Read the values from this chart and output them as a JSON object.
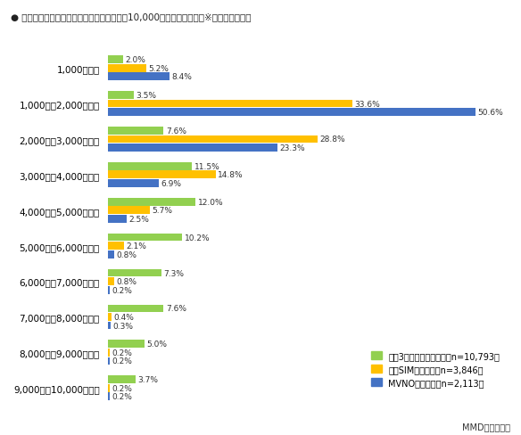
{
  "title": "● 通信会社に支払っている通信の月額料金（10,000円未満まで抜粋）※通信サービス別",
  "categories": [
    "1,000円未満",
    "1,000円～2,000円未満",
    "2,000円～3,000円未満",
    "3,000円～4,000円未満",
    "4,000円～5,000円未満",
    "5,000円～6,000円未満",
    "6,000円～7,000円未満",
    "7,000円～8,000円未満",
    "8,000円～9,000円未満",
    "9,000円～10,000円未満"
  ],
  "series": {
    "大手3キャリアユーザー（n=10,793）": {
      "color": "#92D050",
      "values": [
        2.0,
        3.5,
        7.6,
        11.5,
        12.0,
        10.2,
        7.3,
        7.6,
        5.0,
        3.7
      ]
    },
    "格安SIMユーザー（n=3,846）": {
      "color": "#FFC000",
      "values": [
        5.2,
        33.6,
        28.8,
        14.8,
        5.7,
        2.1,
        0.8,
        0.4,
        0.2,
        0.2
      ]
    },
    "MVNOユーザー（n=2,113）": {
      "color": "#4472C4",
      "values": [
        8.4,
        50.6,
        23.3,
        6.9,
        2.5,
        0.8,
        0.2,
        0.3,
        0.2,
        0.2
      ]
    }
  },
  "legend_labels": [
    "大手3キャリアユーザー（n=10,793）",
    "格安SIMユーザー（n=3,846）",
    "MVNOユーザー（n=2,113）"
  ],
  "footer": "MMD研究所調べ",
  "background_color": "#FFFFFF",
  "bar_height": 0.22,
  "bar_gap": 0.02,
  "xlim": [
    0,
    55
  ]
}
